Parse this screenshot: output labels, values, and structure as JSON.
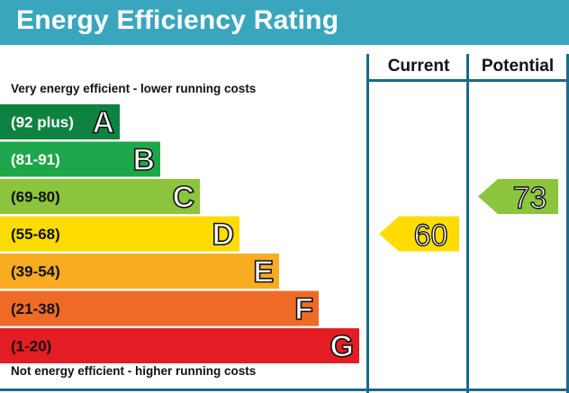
{
  "title": "Energy Efficiency Rating",
  "columns": {
    "current": "Current",
    "potential": "Potential"
  },
  "top_note": "Very energy efficient - lower running costs",
  "bottom_note": "Not energy efficient - higher running costs",
  "chart_data": {
    "type": "bar",
    "title": "Energy Efficiency Rating",
    "bands": [
      {
        "range": "(92 plus)",
        "letter": "A",
        "color": "#0f8240",
        "text_color": "#ffffff"
      },
      {
        "range": "(81-91)",
        "letter": "B",
        "color": "#1ea74a",
        "text_color": "#ffffff"
      },
      {
        "range": "(69-80)",
        "letter": "C",
        "color": "#8cc43e",
        "text_color": "#111111"
      },
      {
        "range": "(55-68)",
        "letter": "D",
        "color": "#ffdc00",
        "text_color": "#111111"
      },
      {
        "range": "(39-54)",
        "letter": "E",
        "color": "#f9ac22",
        "text_color": "#111111"
      },
      {
        "range": "(21-38)",
        "letter": "F",
        "color": "#ef6b25",
        "text_color": "#111111"
      },
      {
        "range": "(1-20)",
        "letter": "G",
        "color": "#e31d23",
        "text_color": "#111111"
      }
    ],
    "current": {
      "value": 60,
      "band": "D",
      "color": "#ffdc00"
    },
    "potential": {
      "value": 73,
      "band": "C",
      "color": "#8cc43e"
    }
  }
}
